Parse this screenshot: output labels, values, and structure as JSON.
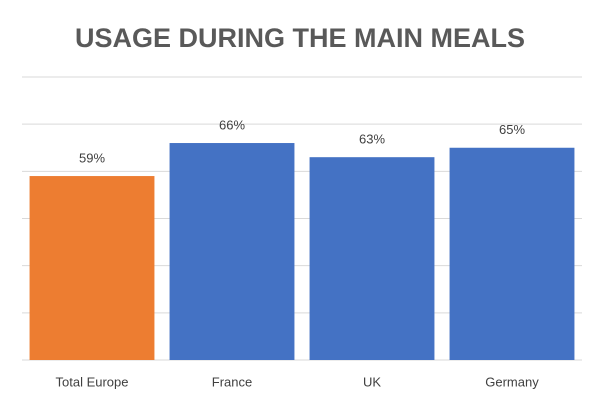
{
  "chart_data": {
    "type": "bar",
    "title": "USAGE DURING THE MAIN MEALS",
    "categories": [
      "Total Europe",
      "France",
      "UK",
      "Germany"
    ],
    "values": [
      59,
      66,
      63,
      65
    ],
    "value_labels": [
      "59%",
      "66%",
      "63%",
      "65%"
    ],
    "colors": [
      "#ed7d31",
      "#4472c4",
      "#4472c4",
      "#4472c4"
    ],
    "ylim": [
      20,
      80
    ],
    "yticks": [
      20,
      30,
      40,
      50,
      60,
      70,
      80
    ],
    "grid": true
  }
}
